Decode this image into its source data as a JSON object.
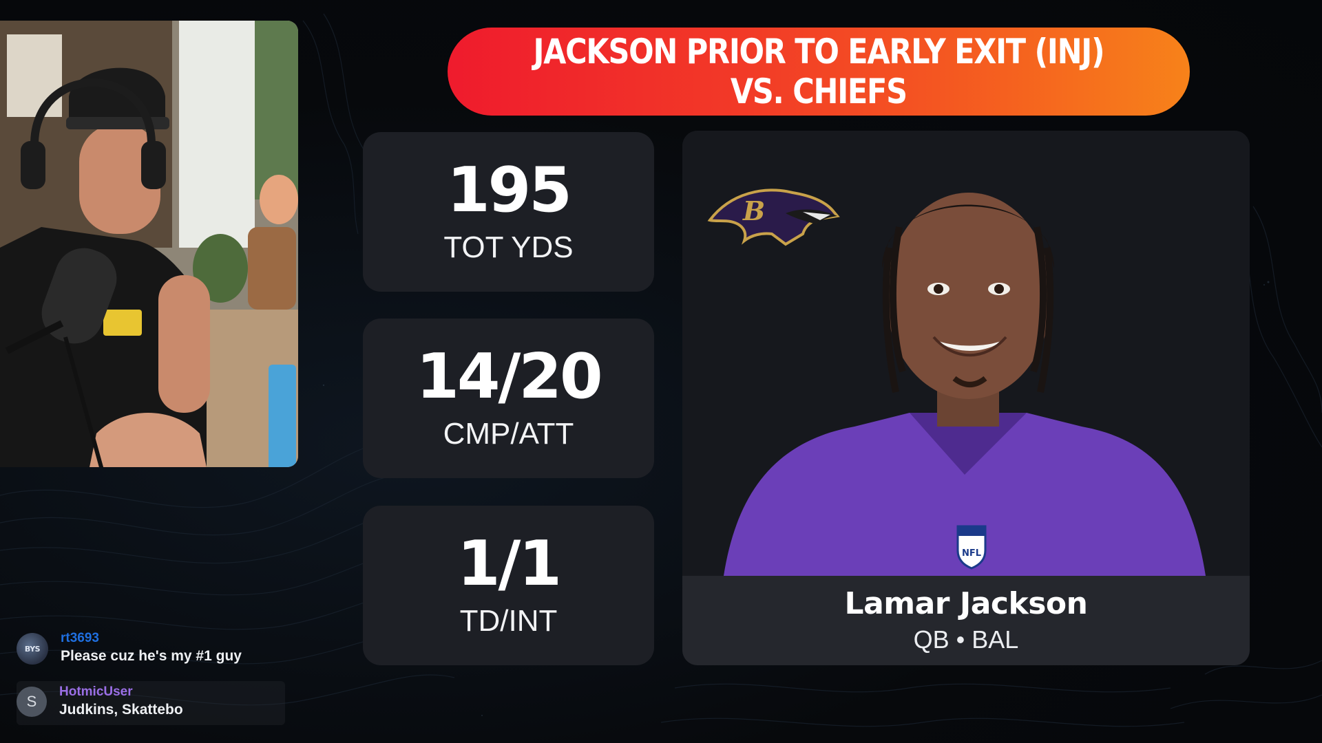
{
  "banner": {
    "line1": "JACKSON PRIOR TO EARLY EXIT (INJ)",
    "line2": "VS. CHIEFS"
  },
  "stats": [
    {
      "value": "195",
      "label": "TOT YDS"
    },
    {
      "value": "14/20",
      "label": "CMP/ATT"
    },
    {
      "value": "1/1",
      "label": "TD/INT"
    }
  ],
  "player": {
    "name": "Lamar Jackson",
    "position": "QB",
    "team": "BAL",
    "meta": "QB • BAL",
    "team_logo_icon": "ravens-logo-icon",
    "jersey_color": "#6b3fb8"
  },
  "chat": {
    "messages": [
      {
        "user": "rt3693",
        "text": "Please cuz he's my #1 guy",
        "avatar_icon": "user-avatar-icon"
      },
      {
        "user": "HotmicUser",
        "text": "Judkins, Skattebo",
        "avatar_initial": "S"
      }
    ]
  },
  "colors": {
    "banner_start": "#ef1b2d",
    "banner_end": "#f7821a",
    "card_bg": "#1d1f25",
    "chat_user_1": "#1f6fe0",
    "chat_user_2": "#9b6fe6"
  }
}
